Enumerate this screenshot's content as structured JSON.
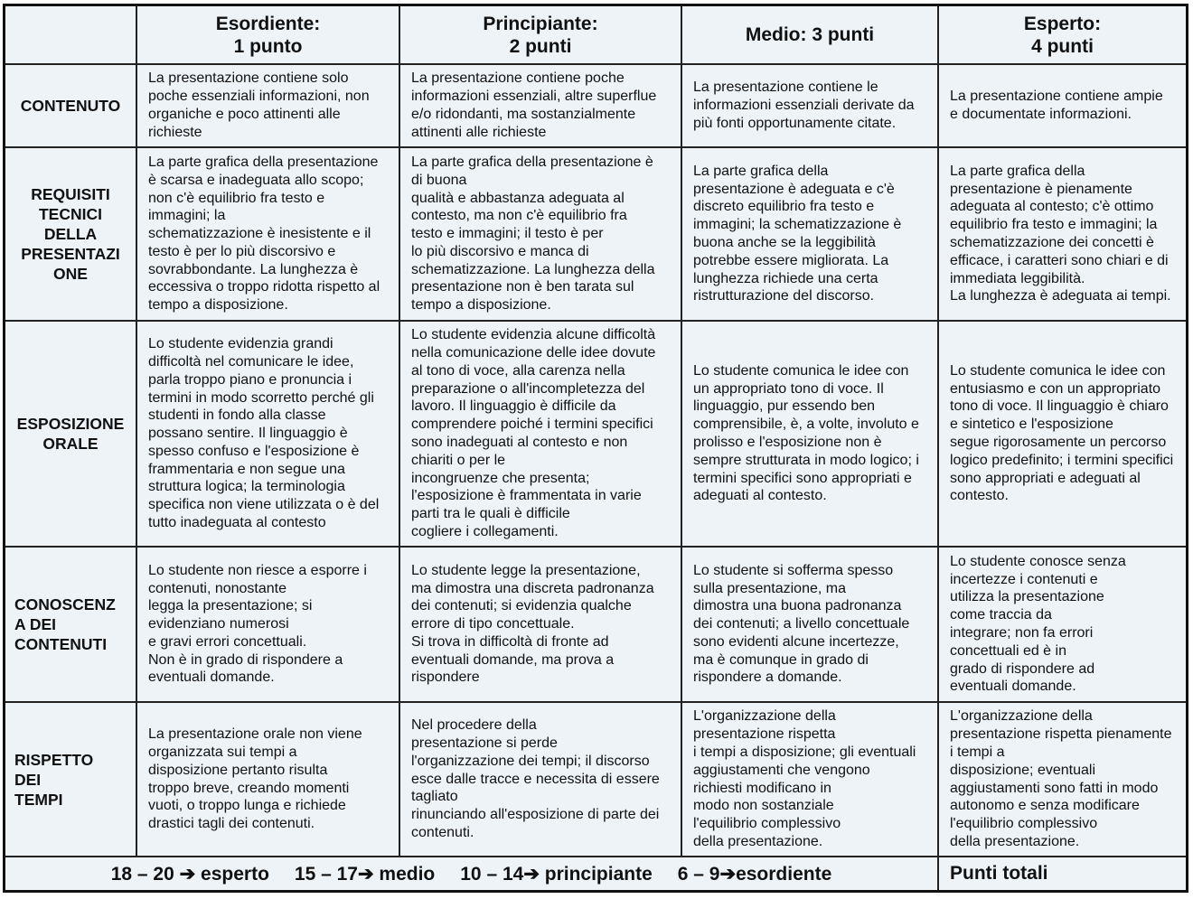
{
  "headers": [
    "",
    "Esordiente:\n1 punto",
    "Principiante:\n2 punti",
    "Medio: 3 punti",
    "Esperto:\n4 punti"
  ],
  "rows": [
    {
      "label": "CONTENUTO",
      "cells": [
        "La presentazione contiene solo\npoche essenziali informazioni, non\norganiche e poco attinenti alle\nrichieste",
        "La presentazione contiene poche\ninformazioni essenziali, altre superflue\ne/o ridondanti, ma sostanzialmente\nattinenti alle richieste",
        "La presentazione contiene le\ninformazioni essenziali derivate da\npiù fonti opportunamente citate.",
        "La presentazione contiene ampie\ne documentate informazioni."
      ]
    },
    {
      "label": "REQUISITI\nTECNICI\nDELLA\nPRESENTAZI\nONE",
      "cells": [
        "La parte grafica della presentazione\nè scarsa e inadeguata allo scopo;\nnon c'è equilibrio fra testo e\nimmagini; la\nschematizzazione è inesistente e il\ntesto è per lo più discorsivo e\nsovrabbondante. La lunghezza è\neccessiva o troppo ridotta rispetto al\ntempo a disposizione.",
        "La parte grafica della presentazione è\ndi buona\nqualità e abbastanza adeguata al\ncontesto, ma non c'è equilibrio fra\ntesto e immagini; il testo è per\nlo più discorsivo e manca di\nschematizzazione. La lunghezza della\npresentazione non è ben tarata sul\ntempo a disposizione.",
        "La parte grafica della\npresentazione è adeguata e c'è\ndiscreto equilibrio fra testo e\nimmagini; la schematizzazione è\nbuona anche se la leggibilità\npotrebbe essere migliorata. La\nlunghezza richiede una certa\nristrutturazione del discorso.",
        "La parte grafica della\npresentazione è pienamente\nadeguata al contesto; c'è ottimo\nequilibrio fra testo e immagini; la\nschematizzazione dei concetti è\nefficace, i caratteri sono chiari e di\nimmediata leggibilità.\nLa lunghezza è adeguata ai tempi."
      ]
    },
    {
      "label": "ESPOSIZIONE\nORALE",
      "cells": [
        "Lo studente evidenzia grandi\ndifficoltà nel comunicare le idee,\nparla troppo piano e pronuncia i\ntermini in modo scorretto perché gli\nstudenti in fondo alla classe\npossano sentire. Il linguaggio è\nspesso confuso e l'esposizione è\nframmentaria e non segue una\nstruttura logica; la terminologia\nspecifica non viene utilizzata o è del\ntutto inadeguata al contesto",
        "Lo studente evidenzia alcune difficoltà\nnella comunicazione delle idee dovute\nal tono di voce, alla carenza nella\npreparazione o all'incompletezza del\nlavoro. Il linguaggio è difficile da\ncomprendere poiché i termini specifici\nsono inadeguati al contesto e non\nchiariti o per le\nincongruenze che presenta;\nl'esposizione è frammentata in varie\nparti tra le quali è difficile\ncogliere i collegamenti.",
        "Lo studente comunica le idee con\nun appropriato tono di voce. Il\nlinguaggio, pur essendo ben\ncomprensibile, è, a volte, involuto e\nprolisso e l'esposizione non è\nsempre strutturata in modo logico; i\ntermini specifici sono appropriati e\nadeguati al contesto.",
        "Lo studente comunica le idee con\nentusiasmo e con un appropriato\ntono di voce. Il linguaggio è chiaro\ne sintetico e l'esposizione\nsegue rigorosamente un percorso\nlogico predefinito; i termini specifici\nsono appropriati e adeguati al\ncontesto."
      ]
    },
    {
      "label": "CONOSCENZ\nA DEI\nCONTENUTI",
      "left": true,
      "cells": [
        "Lo studente non riesce a esporre i\ncontenuti, nonostante\nlegga la presentazione; si\nevidenziano numerosi\ne gravi errori concettuali.\nNon è in grado di rispondere a\neventuali domande.",
        "Lo studente legge la presentazione,\nma dimostra una discreta padronanza\ndei contenuti; si evidenzia qualche\nerrore di tipo concettuale.\nSi trova in difficoltà di fronte ad\neventuali domande, ma prova a\nrispondere",
        "Lo studente si sofferma spesso\nsulla presentazione, ma\ndimostra una buona padronanza\ndei contenuti; a livello concettuale\nsono evidenti alcune incertezze,\nma è comunque in grado di\nrispondere a domande.",
        "Lo studente conosce senza\nincertezze i contenuti e\nutilizza la presentazione\ncome traccia da\nintegrare; non fa errori\nconcettuali ed è in\ngrado di rispondere ad\neventuali domande."
      ]
    },
    {
      "label": "RISPETTO\nDEI\nTEMPI",
      "left": true,
      "cells": [
        "La presentazione orale non viene\norganizzata sui tempi a\ndisposizione pertanto risulta\ntroppo breve, creando momenti\nvuoti, o troppo lunga e richiede\ndrastici tagli dei contenuti.",
        "Nel procedere della\npresentazione si perde\nl'organizzazione dei tempi; il discorso\nesce dalle tracce e necessita di essere\ntagliato\nrinunciando all'esposizione di parte dei\ncontenuti.",
        "L'organizzazione della\npresentazione rispetta\ni tempi a disposizione; gli eventuali\naggiustamenti che vengono\nrichiesti  modificano in\nmodo non sostanziale\nl'equilibrio complessivo\ndella presentazione.",
        "L'organizzazione della\npresentazione rispetta pienamente\ni tempi a\ndisposizione; eventuali\naggiustamenti sono fatti in modo\nautonomo e senza modificare\nl'equilibrio complessivo\ndella presentazione."
      ]
    }
  ],
  "footer": {
    "scale": [
      "18 – 20 ➔ esperto",
      "15 – 17➔ medio",
      "10 – 14➔ principiante",
      "6 – 9➔esordiente"
    ],
    "total_label": "Punti totali"
  }
}
